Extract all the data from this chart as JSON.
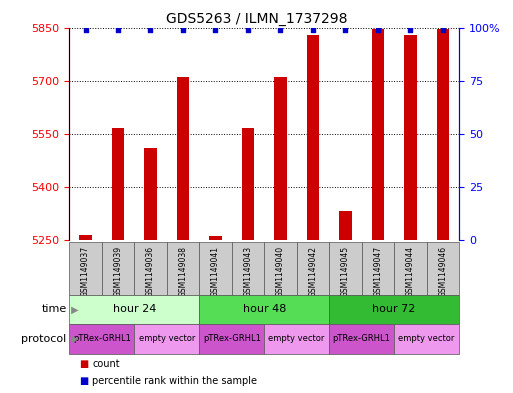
{
  "title": "GDS5263 / ILMN_1737298",
  "samples": [
    "GSM1149037",
    "GSM1149039",
    "GSM1149036",
    "GSM1149038",
    "GSM1149041",
    "GSM1149043",
    "GSM1149040",
    "GSM1149042",
    "GSM1149045",
    "GSM1149047",
    "GSM1149044",
    "GSM1149046"
  ],
  "counts": [
    5262,
    5565,
    5510,
    5710,
    5260,
    5565,
    5710,
    5828,
    5330,
    5845,
    5828,
    5845
  ],
  "percentiles": [
    99,
    99,
    99,
    99,
    99,
    99,
    99,
    99,
    99,
    99,
    99,
    99
  ],
  "ylim_left": [
    5250,
    5850
  ],
  "ylim_right": [
    0,
    100
  ],
  "yticks_left": [
    5250,
    5400,
    5550,
    5700,
    5850
  ],
  "yticks_right": [
    0,
    25,
    50,
    75,
    100
  ],
  "ytick_labels_right": [
    "0",
    "25",
    "50",
    "75",
    "100%"
  ],
  "bar_color": "#cc0000",
  "dot_color": "#0000cc",
  "time_groups": [
    {
      "label": "hour 24",
      "start": 0,
      "end": 3,
      "color": "#ccffcc"
    },
    {
      "label": "hour 48",
      "start": 4,
      "end": 7,
      "color": "#55dd55"
    },
    {
      "label": "hour 72",
      "start": 8,
      "end": 11,
      "color": "#33bb33"
    }
  ],
  "protocol_groups": [
    {
      "label": "pTRex-GRHL1",
      "start": 0,
      "end": 1,
      "color": "#cc55cc"
    },
    {
      "label": "empty vector",
      "start": 2,
      "end": 3,
      "color": "#ee99ee"
    },
    {
      "label": "pTRex-GRHL1",
      "start": 4,
      "end": 5,
      "color": "#cc55cc"
    },
    {
      "label": "empty vector",
      "start": 6,
      "end": 7,
      "color": "#ee99ee"
    },
    {
      "label": "pTRex-GRHL1",
      "start": 8,
      "end": 9,
      "color": "#cc55cc"
    },
    {
      "label": "empty vector",
      "start": 10,
      "end": 11,
      "color": "#ee99ee"
    }
  ],
  "sample_box_color": "#cccccc",
  "time_label": "time",
  "protocol_label": "protocol",
  "legend_count_color": "#cc0000",
  "legend_pct_color": "#0000cc",
  "legend_count_label": "count",
  "legend_pct_label": "percentile rank within the sample"
}
